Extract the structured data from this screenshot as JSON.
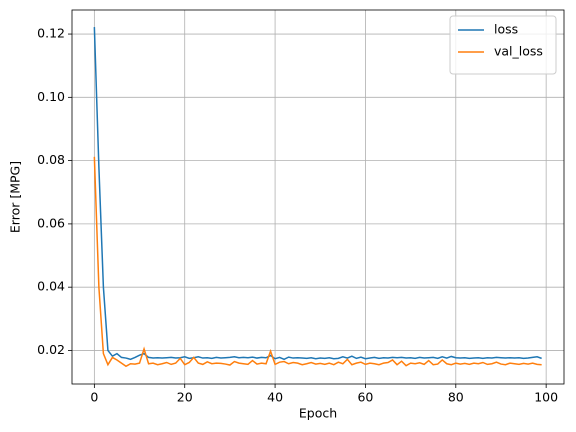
{
  "chart_data": {
    "type": "line",
    "xlabel": "Epoch",
    "ylabel": "Error [MPG]",
    "x": [
      0,
      1,
      2,
      3,
      4,
      5,
      6,
      7,
      8,
      9,
      10,
      11,
      12,
      13,
      14,
      15,
      16,
      17,
      18,
      19,
      20,
      21,
      22,
      23,
      24,
      25,
      26,
      27,
      28,
      29,
      30,
      31,
      32,
      33,
      34,
      35,
      36,
      37,
      38,
      39,
      40,
      41,
      42,
      43,
      44,
      45,
      46,
      47,
      48,
      49,
      50,
      51,
      52,
      53,
      54,
      55,
      56,
      57,
      58,
      59,
      60,
      61,
      62,
      63,
      64,
      65,
      66,
      67,
      68,
      69,
      70,
      71,
      72,
      73,
      74,
      75,
      76,
      77,
      78,
      79,
      80,
      81,
      82,
      83,
      84,
      85,
      86,
      87,
      88,
      89,
      90,
      91,
      92,
      93,
      94,
      95,
      96,
      97,
      98,
      99
    ],
    "series": [
      {
        "name": "loss",
        "color": "#1f77b4",
        "values": [
          0.1222,
          0.078,
          0.04,
          0.02,
          0.0182,
          0.019,
          0.0178,
          0.0176,
          0.0172,
          0.0178,
          0.0185,
          0.019,
          0.0178,
          0.0176,
          0.0177,
          0.0176,
          0.0177,
          0.0178,
          0.0176,
          0.0177,
          0.018,
          0.0175,
          0.0177,
          0.018,
          0.0176,
          0.0177,
          0.0175,
          0.0178,
          0.0176,
          0.0177,
          0.0178,
          0.018,
          0.0177,
          0.0178,
          0.0177,
          0.0179,
          0.0176,
          0.0178,
          0.0177,
          0.0184,
          0.0174,
          0.0178,
          0.0172,
          0.0179,
          0.0176,
          0.0177,
          0.0176,
          0.0175,
          0.0177,
          0.0174,
          0.0176,
          0.0175,
          0.0177,
          0.0174,
          0.0175,
          0.018,
          0.0176,
          0.0182,
          0.0175,
          0.0179,
          0.0174,
          0.0176,
          0.0178,
          0.0175,
          0.0177,
          0.0176,
          0.0178,
          0.0177,
          0.0178,
          0.0176,
          0.0177,
          0.0175,
          0.0178,
          0.0176,
          0.0177,
          0.0178,
          0.0175,
          0.018,
          0.0176,
          0.0181,
          0.0177,
          0.0176,
          0.0177,
          0.0175,
          0.0176,
          0.0177,
          0.0175,
          0.0177,
          0.0176,
          0.0178,
          0.0177,
          0.0176,
          0.0177,
          0.0176,
          0.0177,
          0.0175,
          0.0176,
          0.0178,
          0.018,
          0.0175
        ]
      },
      {
        "name": "val_loss",
        "color": "#ff7f0e",
        "values": [
          0.0812,
          0.04,
          0.019,
          0.0155,
          0.0178,
          0.017,
          0.016,
          0.015,
          0.0158,
          0.0157,
          0.016,
          0.0205,
          0.0158,
          0.016,
          0.0155,
          0.0158,
          0.0162,
          0.0156,
          0.016,
          0.0175,
          0.0155,
          0.0162,
          0.0178,
          0.016,
          0.0156,
          0.0164,
          0.0158,
          0.016,
          0.0159,
          0.0157,
          0.0154,
          0.0165,
          0.016,
          0.0158,
          0.0156,
          0.0168,
          0.0157,
          0.016,
          0.0158,
          0.0198,
          0.0156,
          0.0163,
          0.0165,
          0.0158,
          0.0162,
          0.016,
          0.0155,
          0.0158,
          0.0162,
          0.0157,
          0.0159,
          0.0156,
          0.016,
          0.0155,
          0.0163,
          0.0158,
          0.0172,
          0.0155,
          0.016,
          0.0163,
          0.0156,
          0.016,
          0.0158,
          0.0155,
          0.016,
          0.0162,
          0.017,
          0.0155,
          0.0166,
          0.0152,
          0.016,
          0.0158,
          0.0161,
          0.0156,
          0.0168,
          0.0155,
          0.0157,
          0.017,
          0.0158,
          0.0155,
          0.016,
          0.0157,
          0.0159,
          0.0156,
          0.016,
          0.0158,
          0.0162,
          0.0156,
          0.0158,
          0.0163,
          0.0157,
          0.0155,
          0.016,
          0.0158,
          0.0156,
          0.0159,
          0.0157,
          0.016,
          0.0156,
          0.0155
        ]
      }
    ],
    "xlim": [
      -4.95,
      103.95
    ],
    "xticks": [
      0,
      20,
      40,
      60,
      80,
      100
    ],
    "ylim": [
      0.0094,
      0.1276
    ],
    "yticks": [
      0.02,
      0.04,
      0.06,
      0.08,
      {
        "value": 0.1,
        "label": "0.10"
      },
      0.12
    ],
    "grid": true,
    "legend": "upper right"
  }
}
